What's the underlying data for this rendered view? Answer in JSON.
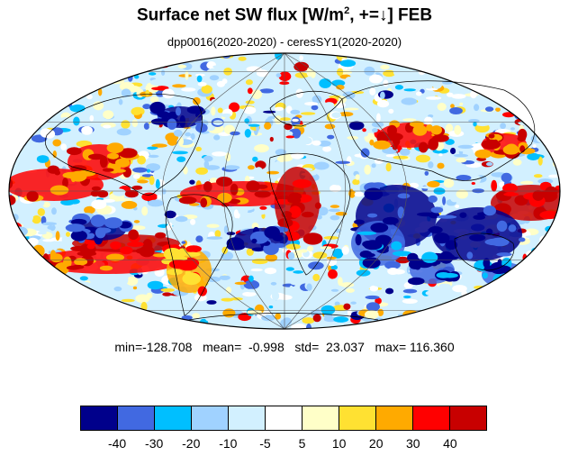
{
  "title": {
    "main": "Surface net SW flux [W/m",
    "sup": "2",
    "rest": ", +=↓]  FEB"
  },
  "subtitle": "dpp0016(2020-2020) - ceresSY1(2020-2020)",
  "stats": "min=-128.708   mean=  -0.998   std=  23.037   max= 116.360",
  "colorbar": {
    "colors": [
      "#00008b",
      "#4169e1",
      "#00bfff",
      "#a0d2ff",
      "#d2f0ff",
      "#ffffff",
      "#ffffc8",
      "#ffe132",
      "#ffaa00",
      "#ff0000",
      "#c80000"
    ],
    "labels": [
      "-40",
      "-30",
      "-20",
      "-10",
      "-5",
      "5",
      "10",
      "20",
      "30",
      "40"
    ]
  }
}
